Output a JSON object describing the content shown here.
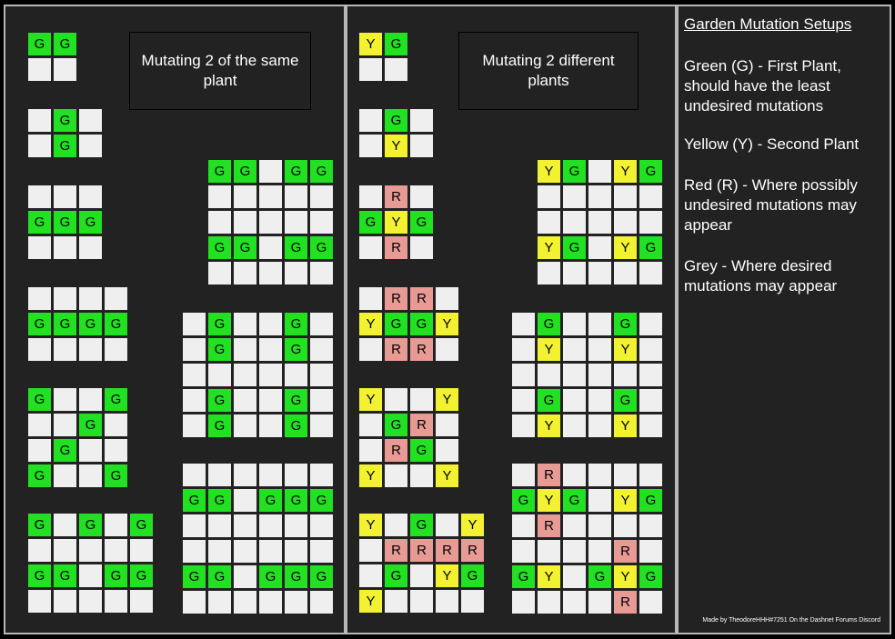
{
  "colors": {
    "G": "#22e022",
    "Y": "#f2f232",
    "R": "#e89a95",
    "O": "#efefef"
  },
  "left_title": "Mutating 2 of the same plant",
  "mid_title": "Mutating 2 different plants",
  "legend": {
    "title": "Garden Mutation Setups",
    "green": "Green (G) - First Plant, should have the least undesired mutations",
    "yellow": "Yellow (Y) - Second Plant",
    "red": "Red (R) - Where possibly undesired mutations may appear",
    "grey": "Grey - Where desired mutations may appear"
  },
  "credit": "Made by TheodoreHHH#7251 On the Dashnet Forums Discord",
  "grids": [
    {
      "id": "left-1",
      "rows": [
        "GG",
        "OO"
      ]
    },
    {
      "id": "left-2",
      "rows": [
        "OGO",
        "OGO"
      ]
    },
    {
      "id": "left-3",
      "rows": [
        "OOO",
        "GGG",
        "OOO"
      ]
    },
    {
      "id": "left-4",
      "rows": [
        "OOOO",
        "GGGG",
        "OOOO"
      ]
    },
    {
      "id": "left-5",
      "rows": [
        "GOOG",
        "OOGO",
        "OGOO",
        "GOOG"
      ]
    },
    {
      "id": "left-6",
      "rows": [
        "GOGOG",
        "OOOOO",
        "GGOGG",
        "OOOOO"
      ]
    },
    {
      "id": "left-7",
      "rows": [
        "GGOGG",
        "OOOOO",
        "OOOOO",
        "GGOGG",
        "OOOOO"
      ]
    },
    {
      "id": "left-8",
      "rows": [
        "OGOOGO",
        "OGOOGO",
        "OOOOOO",
        "OGOOGO",
        "OGOOGO"
      ]
    },
    {
      "id": "left-9",
      "rows": [
        "OOOOOO",
        "GGOGGG",
        "OOOOOO",
        "OOOOOO",
        "GGOGGG",
        "OOOOOO"
      ]
    },
    {
      "id": "mid-1",
      "rows": [
        "YG",
        "OO"
      ]
    },
    {
      "id": "mid-2",
      "rows": [
        "OGO",
        "OYO"
      ]
    },
    {
      "id": "mid-3",
      "rows": [
        "ORO",
        "GYG",
        "ORO"
      ]
    },
    {
      "id": "mid-4",
      "rows": [
        "ORRO",
        "YGGY",
        "ORRO"
      ]
    },
    {
      "id": "mid-5",
      "rows": [
        "YOOY",
        "OGRO",
        "ORGO",
        "YOOY"
      ]
    },
    {
      "id": "mid-6",
      "rows": [
        "YOGOY",
        "ORRRR",
        "OGOYG",
        "YOOOO"
      ]
    },
    {
      "id": "mid-7",
      "rows": [
        "YGOYG",
        "OOOOO",
        "OOOOO",
        "YGOYG",
        "OOOOO"
      ]
    },
    {
      "id": "mid-8",
      "rows": [
        "OGOOGO",
        "OYOOYO",
        "OOOOOO",
        "OGOOGO",
        "OYOOYO"
      ]
    },
    {
      "id": "mid-9",
      "rows": [
        "OROOOO",
        "GYGOYG",
        "OROOOO",
        "OOOORO",
        "GYOGYG",
        "OOOORO"
      ]
    }
  ]
}
